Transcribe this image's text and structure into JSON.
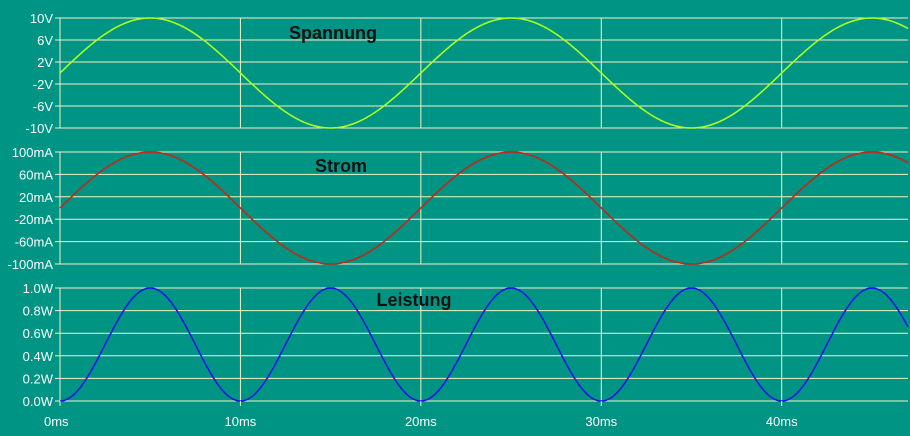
{
  "colors": {
    "background": "#009484",
    "grid": "#f4f0c4",
    "tick_text": "#ffffff",
    "title_text": "#111111"
  },
  "chart_data": [
    {
      "type": "line",
      "title": "Spannung",
      "xlim": [
        0,
        47
      ],
      "ylim": [
        -10,
        10
      ],
      "yticks": [
        10,
        6,
        2,
        -2,
        -6,
        -10
      ],
      "ytick_labels": [
        "10V",
        "6V",
        "2V",
        "-2V",
        "-6V",
        "-10V"
      ],
      "grid": true,
      "series": [
        {
          "color": "#a8ff20",
          "function": "sine",
          "amplitude": 10,
          "offset": 0,
          "period": 20,
          "phase": 0
        }
      ]
    },
    {
      "type": "line",
      "title": "Strom",
      "xlim": [
        0,
        47
      ],
      "ylim": [
        -100,
        100
      ],
      "yticks": [
        100,
        60,
        20,
        -20,
        -60,
        -100
      ],
      "ytick_labels": [
        "100mA",
        "60mA",
        "20mA",
        "-20mA",
        "-60mA",
        "-100mA"
      ],
      "grid": true,
      "series": [
        {
          "color": "#c02818",
          "function": "sine",
          "amplitude": 100,
          "offset": 0,
          "period": 20,
          "phase": 0
        }
      ]
    },
    {
      "type": "line",
      "title": "Leistung",
      "xlim": [
        0,
        47
      ],
      "ylim": [
        0,
        1
      ],
      "yticks": [
        1,
        0.8,
        0.6,
        0.4,
        0.2,
        0
      ],
      "ytick_labels": [
        "1.0W",
        "0.8W",
        "0.6W",
        "0.4W",
        "0.2W",
        "0.0W"
      ],
      "xticks": [
        0,
        10,
        20,
        30,
        40
      ],
      "xtick_labels": [
        "0ms",
        "10ms",
        "20ms",
        "30ms",
        "40ms"
      ],
      "grid": true,
      "series": [
        {
          "color": "#1818e0",
          "function": "sine_squared",
          "amplitude": 1,
          "offset": 0,
          "period": 20,
          "phase": 0
        }
      ]
    }
  ]
}
